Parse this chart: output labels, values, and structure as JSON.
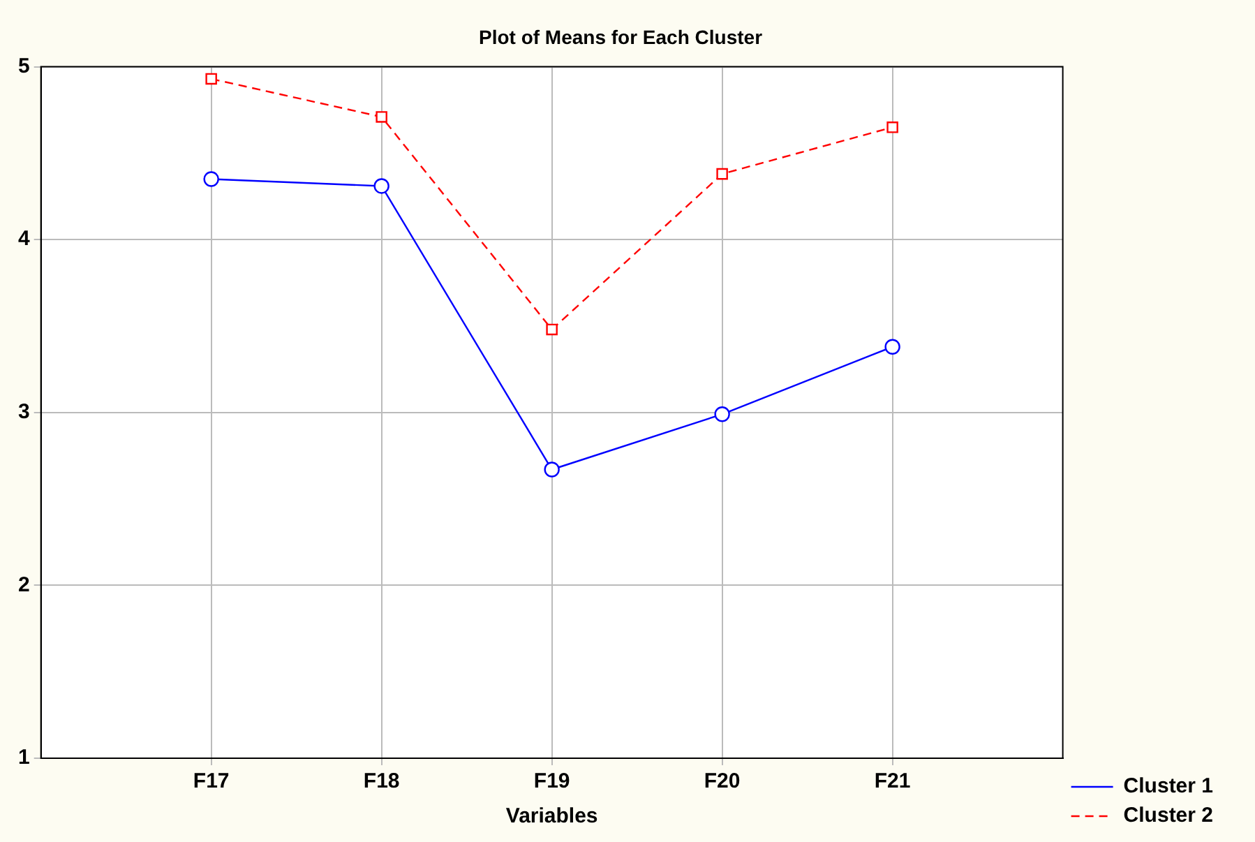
{
  "chart_data": {
    "type": "line",
    "title": "Plot of Means for Each Cluster",
    "xlabel": "Variables",
    "categories": [
      "F17",
      "F18",
      "F19",
      "F20",
      "F21"
    ],
    "ylim": [
      1,
      5
    ],
    "yticks": [
      1,
      2,
      3,
      4,
      5
    ],
    "grid": true,
    "legend": "bottom right",
    "series": [
      {
        "name": "Cluster 1",
        "color": "#0000ff",
        "marker": "circle",
        "line_style": "solid",
        "values": [
          4.35,
          4.31,
          2.67,
          2.99,
          3.38
        ]
      },
      {
        "name": "Cluster 2",
        "color": "#ff0000",
        "marker": "square",
        "line_style": "dashed",
        "values": [
          4.93,
          4.71,
          3.48,
          4.38,
          4.65
        ]
      }
    ]
  }
}
